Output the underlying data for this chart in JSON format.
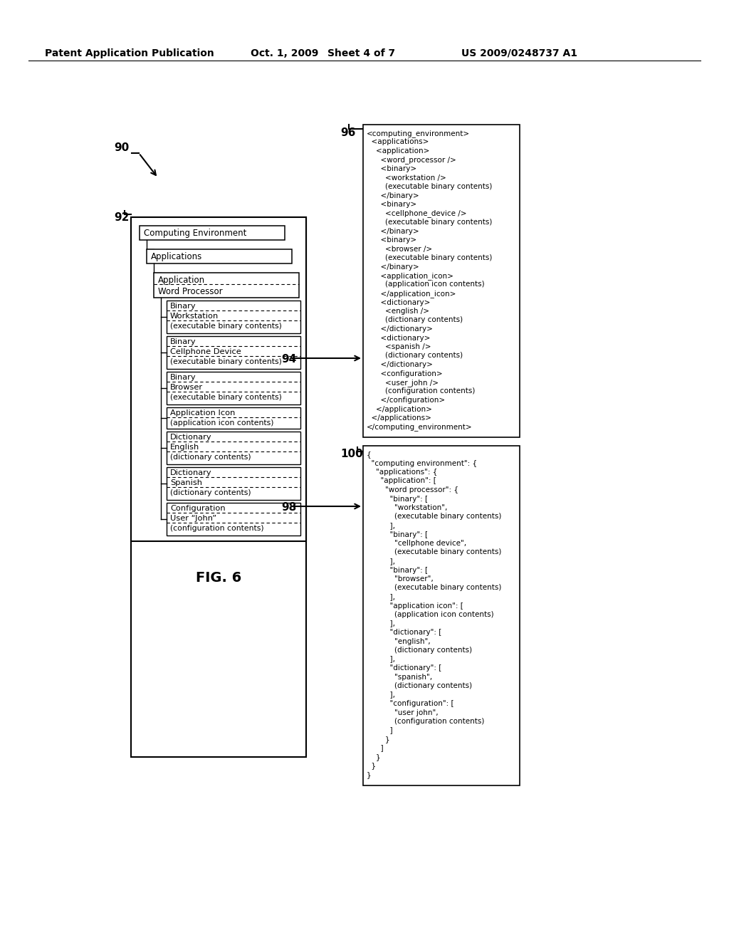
{
  "bg_color": "#ffffff",
  "header_left": "Patent Application Publication",
  "header_date": "Oct. 1, 2009",
  "header_sheet": "Sheet 4 of 7",
  "header_patent": "US 2009/0248737 A1",
  "fig_label": "FIG. 6",
  "xml_lines": [
    "<computing_environment>",
    "  <applications>",
    "    <application>",
    "      <word_processor />",
    "      <binary>",
    "        <workstation />",
    "        (executable binary contents)",
    "      </binary>",
    "      <binary>",
    "        <cellphone_device />",
    "        (executable binary contents)",
    "      </binary>",
    "      <binary>",
    "        <browser />",
    "        (executable binary contents)",
    "      </binary>",
    "      <application_icon>",
    "        (application icon contents)",
    "      </application_icon>",
    "      <dictionary>",
    "        <english />",
    "        (dictionary contents)",
    "      </dictionary>",
    "      <dictionary>",
    "        <spanish />",
    "        (dictionary contents)",
    "      </dictionary>",
    "      <configuration>",
    "        <user_john />",
    "        (configuration contents)",
    "      </configuration>",
    "    </application>",
    "  </applications>",
    "</computing_environment>"
  ],
  "json_lines": [
    "{",
    "  \"computing environment\": {",
    "    \"applications\": {",
    "      \"application\": [",
    "        \"word processor\": {",
    "          \"binary\": [",
    "            \"workstation\",",
    "            (executable binary contents)",
    "          ],",
    "          \"binary\": [",
    "            \"cellphone device\",",
    "            (executable binary contents)",
    "          ],",
    "          \"binary\": [",
    "            \"browser\",",
    "            (executable binary contents)",
    "          ],",
    "          \"application icon\": [",
    "            (application icon contents)",
    "          ],",
    "          \"dictionary\": [",
    "            \"english\",",
    "            (dictionary contents)",
    "          ],",
    "          \"dictionary\": [",
    "            \"spanish\",",
    "            (dictionary contents)",
    "          ],",
    "          \"configuration\": [",
    "            \"user john\",",
    "            (configuration contents)",
    "          ]",
    "        }",
    "      ]",
    "    }",
    "  }",
    "}"
  ]
}
